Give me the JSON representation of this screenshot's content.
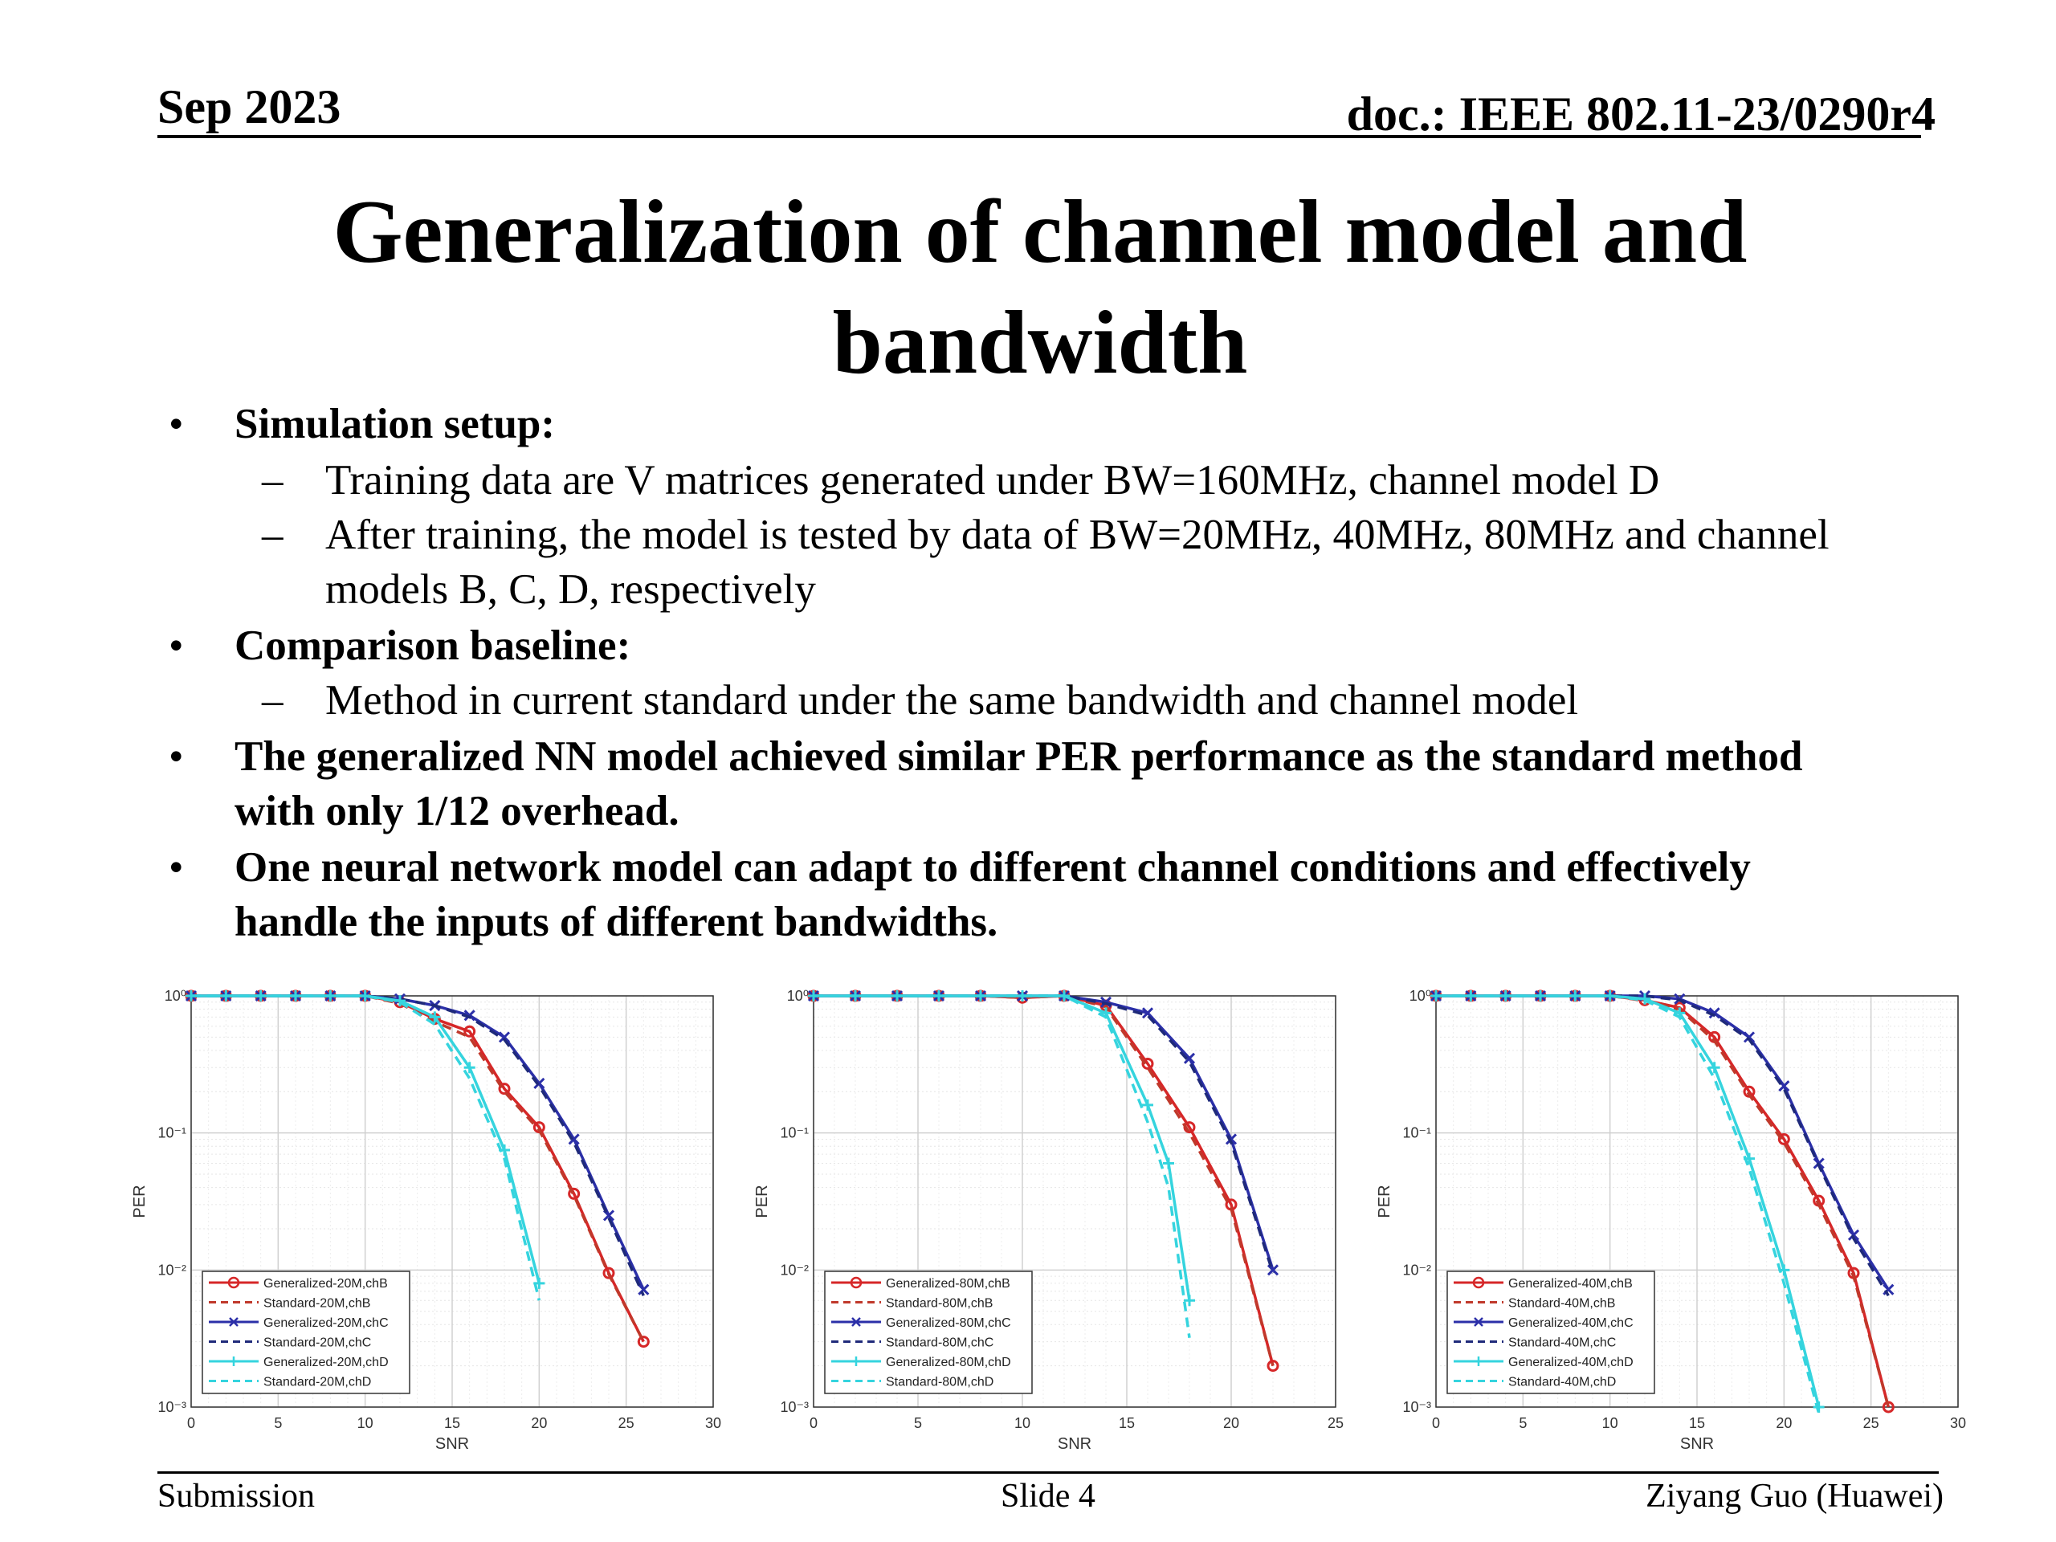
{
  "header": {
    "date": "Sep 2023",
    "doc": "doc.: IEEE 802.11-23/0290r4"
  },
  "title": {
    "line1": "Generalization of channel model and",
    "line2": "bandwidth"
  },
  "bullets": [
    {
      "level": 1,
      "text": "Simulation setup:"
    },
    {
      "level": 2,
      "text": "Training data are V matrices generated under BW=160MHz, channel model D"
    },
    {
      "level": 2,
      "text": "After training, the model is tested by data of BW=20MHz, 40MHz, 80MHz and channel"
    },
    {
      "level": 3,
      "text": "models B, C, D, respectively"
    },
    {
      "level": 1,
      "text": "Comparison baseline:"
    },
    {
      "level": 2,
      "text": "Method in current standard under the same bandwidth and channel model"
    },
    {
      "level": 1,
      "text": "The generalized NN model achieved similar PER performance as the standard method"
    },
    {
      "level": 4,
      "text": "with only 1/12 overhead."
    },
    {
      "level": 1,
      "text": "One neural network model can adapt to different channel conditions and effectively"
    },
    {
      "level": 4,
      "text": "handle the inputs of different bandwidths."
    }
  ],
  "bullet_glyph": "•",
  "dash_glyph": "–",
  "footer": {
    "left": "Submission",
    "center": "Slide 4",
    "right": "Ziyang Guo (Huawei)"
  },
  "colors": {
    "red": "#d62728",
    "darkred": "#c0392b",
    "blue": "#2b2fa8",
    "darkblue": "#1f2a7a",
    "cyan": "#35d4de"
  },
  "chart_data": [
    {
      "type": "line",
      "xlabel": "SNR",
      "ylabel": "PER",
      "yscale": "log",
      "xlim": [
        0,
        30
      ],
      "ylim": [
        0.001,
        1
      ],
      "xticks": [
        "0",
        "5",
        "10",
        "15",
        "20",
        "25",
        "30"
      ],
      "yticks": [
        "10⁰",
        "10⁻¹",
        "10⁻²",
        "10⁻³"
      ],
      "grid": true,
      "legend_position": "bottom-left",
      "series": [
        {
          "name": "Generalized-20M,chB",
          "color": "#d62728",
          "dash": false,
          "marker": "circle",
          "x": [
            0,
            2,
            4,
            6,
            8,
            10,
            12,
            14,
            16,
            18,
            20,
            22,
            24,
            26
          ],
          "y": [
            1,
            1,
            1,
            1,
            1,
            1,
            0.9,
            0.68,
            0.55,
            0.21,
            0.11,
            0.036,
            0.0095,
            0.003
          ]
        },
        {
          "name": "Standard-20M,chB",
          "color": "#c0392b",
          "dash": true,
          "marker": "",
          "x": [
            0,
            2,
            4,
            6,
            8,
            10,
            12,
            14,
            16,
            18,
            20,
            22,
            24,
            26
          ],
          "y": [
            1,
            1,
            1,
            1,
            1,
            1,
            0.88,
            0.65,
            0.5,
            0.2,
            0.105,
            0.035,
            0.0093,
            0.003
          ]
        },
        {
          "name": "Generalized-20M,chC",
          "color": "#2b2fa8",
          "dash": false,
          "marker": "x",
          "x": [
            0,
            2,
            4,
            6,
            8,
            10,
            12,
            14,
            16,
            18,
            20,
            22,
            24,
            26
          ],
          "y": [
            1,
            1,
            1,
            1,
            1,
            1,
            0.95,
            0.85,
            0.72,
            0.5,
            0.23,
            0.09,
            0.025,
            0.0072
          ]
        },
        {
          "name": "Standard-20M,chC",
          "color": "#1f2a7a",
          "dash": true,
          "marker": "",
          "x": [
            0,
            2,
            4,
            6,
            8,
            10,
            12,
            14,
            16,
            18,
            20,
            22,
            24,
            26
          ],
          "y": [
            1,
            1,
            1,
            1,
            1,
            1,
            0.95,
            0.85,
            0.7,
            0.48,
            0.22,
            0.085,
            0.024,
            0.0065
          ]
        },
        {
          "name": "Generalized-20M,chD",
          "color": "#35d4de",
          "dash": false,
          "marker": "plus",
          "x": [
            0,
            2,
            4,
            6,
            8,
            10,
            12,
            14,
            16,
            18,
            20
          ],
          "y": [
            1,
            1,
            1,
            1,
            1,
            1,
            0.92,
            0.7,
            0.3,
            0.075,
            0.008
          ]
        },
        {
          "name": "Standard-20M,chD",
          "color": "#35d4de",
          "dash": true,
          "marker": "",
          "x": [
            0,
            2,
            4,
            6,
            8,
            10,
            12,
            14,
            16,
            18,
            20
          ],
          "y": [
            1,
            1,
            1,
            1,
            1,
            1,
            0.9,
            0.62,
            0.25,
            0.065,
            0.006
          ]
        }
      ]
    },
    {
      "type": "line",
      "xlabel": "SNR",
      "ylabel": "PER",
      "yscale": "log",
      "xlim": [
        0,
        25
      ],
      "ylim": [
        0.001,
        1
      ],
      "xticks": [
        "0",
        "5",
        "10",
        "15",
        "20",
        "25"
      ],
      "yticks": [
        "10⁰",
        "10⁻¹",
        "10⁻²",
        "10⁻³"
      ],
      "grid": true,
      "legend_position": "bottom-left",
      "series": [
        {
          "name": "Generalized-80M,chB",
          "color": "#d62728",
          "dash": false,
          "marker": "circle",
          "x": [
            0,
            2,
            4,
            6,
            8,
            10,
            12,
            14,
            16,
            18,
            20,
            22
          ],
          "y": [
            1,
            1,
            1,
            1,
            1,
            0.97,
            1,
            0.85,
            0.32,
            0.11,
            0.03,
            0.002
          ]
        },
        {
          "name": "Standard-80M,chB",
          "color": "#c0392b",
          "dash": true,
          "marker": "",
          "x": [
            0,
            2,
            4,
            6,
            8,
            10,
            12,
            14,
            16,
            18,
            20,
            22
          ],
          "y": [
            1,
            1,
            1,
            1,
            1,
            0.97,
            1,
            0.83,
            0.3,
            0.1,
            0.028,
            0.002
          ]
        },
        {
          "name": "Generalized-80M,chC",
          "color": "#2b2fa8",
          "dash": false,
          "marker": "x",
          "x": [
            0,
            2,
            4,
            6,
            8,
            10,
            12,
            14,
            16,
            18,
            20,
            22
          ],
          "y": [
            1,
            1,
            1,
            1,
            1,
            1,
            1,
            0.9,
            0.75,
            0.35,
            0.09,
            0.01
          ]
        },
        {
          "name": "Standard-80M,chC",
          "color": "#1f2a7a",
          "dash": true,
          "marker": "",
          "x": [
            0,
            2,
            4,
            6,
            8,
            10,
            12,
            14,
            16,
            18,
            20,
            22
          ],
          "y": [
            1,
            1,
            1,
            1,
            1,
            1,
            1,
            0.88,
            0.72,
            0.33,
            0.085,
            0.0095
          ]
        },
        {
          "name": "Generalized-80M,chD",
          "color": "#35d4de",
          "dash": false,
          "marker": "plus",
          "x": [
            0,
            2,
            4,
            6,
            8,
            10,
            12,
            14,
            16,
            17,
            18
          ],
          "y": [
            1,
            1,
            1,
            1,
            1,
            1,
            1,
            0.75,
            0.16,
            0.06,
            0.006
          ]
        },
        {
          "name": "Standard-80M,chD",
          "color": "#35d4de",
          "dash": true,
          "marker": "",
          "x": [
            0,
            2,
            4,
            6,
            8,
            10,
            12,
            14,
            16,
            17,
            18
          ],
          "y": [
            1,
            1,
            1,
            1,
            1,
            1,
            1,
            0.7,
            0.12,
            0.04,
            0.0032
          ]
        }
      ]
    },
    {
      "type": "line",
      "xlabel": "SNR",
      "ylabel": "PER",
      "yscale": "log",
      "xlim": [
        0,
        30
      ],
      "ylim": [
        0.001,
        1
      ],
      "xticks": [
        "0",
        "5",
        "10",
        "15",
        "20",
        "25",
        "30"
      ],
      "yticks": [
        "10⁰",
        "10⁻¹",
        "10⁻²",
        "10⁻³"
      ],
      "grid": true,
      "legend_position": "bottom-left",
      "series": [
        {
          "name": "Generalized-40M,chB",
          "color": "#d62728",
          "dash": false,
          "marker": "circle",
          "x": [
            0,
            2,
            4,
            6,
            8,
            10,
            12,
            14,
            16,
            18,
            20,
            22,
            24,
            26
          ],
          "y": [
            1,
            1,
            1,
            1,
            1,
            1,
            0.93,
            0.82,
            0.5,
            0.2,
            0.09,
            0.032,
            0.0095,
            0.001
          ]
        },
        {
          "name": "Standard-40M,chB",
          "color": "#c0392b",
          "dash": true,
          "marker": "",
          "x": [
            0,
            2,
            4,
            6,
            8,
            10,
            12,
            14,
            16,
            18,
            20,
            22,
            24,
            26
          ],
          "y": [
            1,
            1,
            1,
            1,
            1,
            1,
            0.92,
            0.8,
            0.47,
            0.19,
            0.085,
            0.03,
            0.009,
            0.001
          ]
        },
        {
          "name": "Generalized-40M,chC",
          "color": "#2b2fa8",
          "dash": false,
          "marker": "x",
          "x": [
            0,
            2,
            4,
            6,
            8,
            10,
            12,
            14,
            16,
            18,
            20,
            22,
            24,
            26
          ],
          "y": [
            1,
            1,
            1,
            1,
            1,
            1,
            1,
            0.95,
            0.75,
            0.5,
            0.22,
            0.06,
            0.018,
            0.0072
          ]
        },
        {
          "name": "Standard-40M,chC",
          "color": "#1f2a7a",
          "dash": true,
          "marker": "",
          "x": [
            0,
            2,
            4,
            6,
            8,
            10,
            12,
            14,
            16,
            18,
            20,
            22,
            24,
            26
          ],
          "y": [
            1,
            1,
            1,
            1,
            1,
            1,
            1,
            0.93,
            0.72,
            0.48,
            0.21,
            0.058,
            0.017,
            0.0065
          ]
        },
        {
          "name": "Generalized-40M,chD",
          "color": "#35d4de",
          "dash": false,
          "marker": "plus",
          "x": [
            0,
            2,
            4,
            6,
            8,
            10,
            12,
            14,
            16,
            18,
            20,
            22
          ],
          "y": [
            1,
            1,
            1,
            1,
            1,
            1,
            0.95,
            0.75,
            0.3,
            0.065,
            0.01,
            0.001
          ]
        },
        {
          "name": "Standard-40M,chD",
          "color": "#35d4de",
          "dash": true,
          "marker": "",
          "x": [
            0,
            2,
            4,
            6,
            8,
            10,
            12,
            14,
            16,
            18,
            20,
            22
          ],
          "y": [
            1,
            1,
            1,
            1,
            1,
            1,
            0.93,
            0.7,
            0.25,
            0.055,
            0.008,
            0.0009
          ]
        }
      ]
    }
  ]
}
